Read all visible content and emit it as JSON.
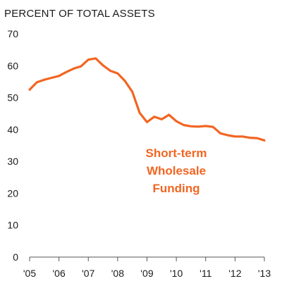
{
  "chart_data": {
    "type": "line",
    "title": "PERCENT OF TOTAL ASSETS",
    "xlabel": "",
    "ylabel": "",
    "ylim": [
      0,
      70
    ],
    "yticks": [
      0,
      10,
      20,
      30,
      40,
      50,
      60,
      70
    ],
    "xlim": [
      2005,
      2013
    ],
    "xtick_labels": [
      "'05",
      "'06",
      "'07",
      "'08",
      "'09",
      "'10",
      "'11",
      "'12",
      "'13"
    ],
    "grid": false,
    "annotation": {
      "lines": [
        "Short-term",
        "Wholesale",
        "Funding"
      ]
    },
    "series": [
      {
        "name": "Short-term Wholesale Funding",
        "color": "#f26522",
        "x": [
          2005.0,
          2005.25,
          2005.5,
          2005.75,
          2006.0,
          2006.25,
          2006.5,
          2006.75,
          2007.0,
          2007.25,
          2007.5,
          2007.75,
          2008.0,
          2008.25,
          2008.5,
          2008.75,
          2009.0,
          2009.25,
          2009.5,
          2009.75,
          2010.0,
          2010.25,
          2010.5,
          2010.75,
          2011.0,
          2011.25,
          2011.5,
          2011.75,
          2012.0,
          2012.25,
          2012.5,
          2012.75,
          2013.0
        ],
        "y": [
          52.5,
          54.8,
          55.6,
          56.2,
          56.8,
          58.0,
          59.1,
          59.8,
          61.9,
          62.3,
          60.1,
          58.4,
          57.6,
          55.2,
          51.8,
          45.2,
          42.3,
          44.0,
          43.2,
          44.6,
          42.6,
          41.4,
          41.0,
          40.9,
          41.1,
          40.8,
          38.8,
          38.2,
          37.8,
          37.8,
          37.4,
          37.3,
          36.6
        ]
      }
    ]
  }
}
